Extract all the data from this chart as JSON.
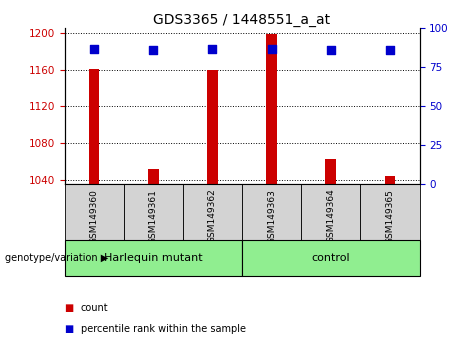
{
  "title": "GDS3365 / 1448551_a_at",
  "samples": [
    "GSM149360",
    "GSM149361",
    "GSM149362",
    "GSM149363",
    "GSM149364",
    "GSM149365"
  ],
  "counts": [
    1161,
    1052,
    1160,
    1199,
    1063,
    1044
  ],
  "percentile_ranks": [
    87,
    86,
    87,
    87,
    86,
    86
  ],
  "ylim_left": [
    1035,
    1205
  ],
  "yticks_left": [
    1040,
    1080,
    1120,
    1160,
    1200
  ],
  "ylim_right": [
    0,
    100
  ],
  "yticks_right": [
    0,
    25,
    50,
    75,
    100
  ],
  "bar_color": "#cc0000",
  "dot_color": "#0000cc",
  "groups": [
    {
      "label": "Harlequin mutant",
      "start": 0,
      "end": 2
    },
    {
      "label": "control",
      "start": 3,
      "end": 5
    }
  ],
  "group_bg_color": "#90ee90",
  "sample_box_color": "#d3d3d3",
  "group_label_prefix": "genotype/variation",
  "legend_count_label": "count",
  "legend_percentile_label": "percentile rank within the sample",
  "tick_color_left": "#cc0000",
  "tick_color_right": "#0000cc",
  "bar_width": 0.18,
  "dot_size": 40,
  "background_color": "#ffffff"
}
